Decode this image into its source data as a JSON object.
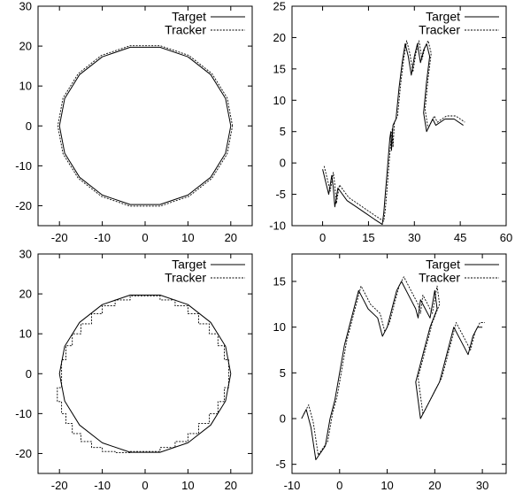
{
  "chart_data": [
    {
      "type": "line",
      "xlim": [
        -25,
        25
      ],
      "ylim": [
        -25,
        30
      ],
      "xticks": [
        -20,
        -10,
        0,
        10,
        20
      ],
      "yticks": [
        -20,
        -10,
        0,
        10,
        20,
        30
      ],
      "legend_position": "top-right",
      "series": [
        {
          "name": "Target",
          "style": "solid",
          "x": [
            20,
            18.79,
            15.32,
            10,
            3.47,
            -3.47,
            -10,
            -15.32,
            -18.79,
            -20,
            -18.79,
            -15.32,
            -10,
            -3.47,
            3.47,
            10,
            15.32,
            18.79,
            20
          ],
          "y": [
            0,
            6.84,
            12.86,
            17.32,
            19.7,
            19.7,
            17.32,
            12.86,
            6.84,
            0,
            -6.84,
            -12.86,
            -17.32,
            -19.7,
            -19.7,
            -17.32,
            -12.86,
            -6.84,
            0
          ]
        },
        {
          "name": "Tracker",
          "style": "dashed",
          "x": [
            20.4,
            19.17,
            15.63,
            10.2,
            3.54,
            -3.54,
            -10.2,
            -15.63,
            -19.17,
            -20.4,
            -19.17,
            -15.63,
            -10.2,
            -3.54,
            3.54,
            10.2,
            15.63,
            19.17,
            20.4
          ],
          "y": [
            0,
            6.98,
            13.11,
            17.67,
            20.09,
            20.09,
            17.67,
            13.11,
            6.98,
            0,
            -6.98,
            -13.11,
            -17.67,
            -20.09,
            -20.09,
            -17.67,
            -13.11,
            -6.98,
            0
          ]
        }
      ]
    },
    {
      "type": "line",
      "xlim": [
        -10,
        60
      ],
      "ylim": [
        -10,
        25
      ],
      "xticks": [
        0,
        15,
        30,
        45,
        60
      ],
      "yticks": [
        -10,
        -5,
        0,
        5,
        10,
        15,
        20,
        25
      ],
      "legend_position": "top-right",
      "series": [
        {
          "name": "Target",
          "style": "solid",
          "x": [
            0,
            1,
            2,
            3,
            3.5,
            4,
            5,
            8,
            11,
            14,
            17,
            19.5,
            20,
            20.5,
            21,
            21.5,
            22,
            22.3,
            22.5,
            23,
            24,
            25,
            26,
            27,
            28,
            29,
            30,
            31,
            32,
            33,
            34,
            35,
            34,
            33,
            34,
            36,
            37,
            40,
            43,
            46
          ],
          "y": [
            -1,
            -3,
            -5,
            -2,
            -4,
            -7,
            -4,
            -6,
            -7,
            -8,
            -9,
            -9.8,
            -8,
            -5,
            -2,
            1,
            4,
            5,
            2,
            6,
            7,
            12,
            16,
            19,
            17,
            14,
            17,
            19,
            16,
            18,
            19,
            17,
            13,
            8,
            5,
            7,
            6,
            7,
            7,
            6
          ]
        },
        {
          "name": "Tracker",
          "style": "dashed",
          "x": [
            0.5,
            1.5,
            2.5,
            3.5,
            4,
            4.5,
            5.5,
            8.5,
            11.5,
            14.5,
            17.5,
            20,
            20.5,
            21,
            21.5,
            22,
            22.5,
            22.8,
            23,
            23.5,
            24.5,
            25.5,
            26.5,
            27.5,
            28.5,
            29.5,
            30.5,
            31.5,
            32.5,
            33.5,
            34.5,
            35.5,
            34.5,
            33.5,
            34.5,
            36.5,
            37.5,
            40.5,
            43.5,
            46.5
          ],
          "y": [
            -0.5,
            -2.5,
            -4.5,
            -1.5,
            -3.5,
            -6.5,
            -3.5,
            -5.5,
            -6.5,
            -7.5,
            -8.5,
            -9.3,
            -7.5,
            -4.5,
            -1.5,
            1.5,
            4.5,
            5.5,
            2.5,
            6.5,
            7.5,
            12.5,
            16.5,
            19.5,
            17.5,
            14.5,
            17.5,
            19.5,
            16.5,
            18.5,
            19.5,
            17.5,
            13.5,
            8.5,
            5.5,
            7.5,
            6.5,
            7.5,
            7.5,
            6.5
          ]
        }
      ]
    },
    {
      "type": "line",
      "xlim": [
        -25,
        25
      ],
      "ylim": [
        -25,
        30
      ],
      "xticks": [
        -20,
        -10,
        0,
        10,
        20
      ],
      "yticks": [
        -20,
        -10,
        0,
        10,
        20,
        30
      ],
      "legend_position": "top-right",
      "series": [
        {
          "name": "Target",
          "style": "solid",
          "x": [
            20,
            18.79,
            15.32,
            10,
            3.47,
            -3.47,
            -10,
            -15.32,
            -18.79,
            -20,
            -18.79,
            -15.32,
            -10,
            -3.47,
            3.47,
            10,
            15.32,
            18.79,
            20
          ],
          "y": [
            0,
            6.84,
            12.86,
            17.32,
            19.7,
            19.7,
            17.32,
            12.86,
            6.84,
            0,
            -6.84,
            -12.86,
            -17.32,
            -19.7,
            -19.7,
            -17.32,
            -12.86,
            -6.84,
            0
          ]
        },
        {
          "name": "Tracker",
          "style": "dashed",
          "x": [
            19.5,
            19.5,
            18.5,
            18.5,
            17,
            17,
            15,
            15,
            12.5,
            12.5,
            10,
            10,
            7,
            7,
            3.5,
            3.5,
            0,
            -3.5,
            -3.5,
            -7,
            -7,
            -10,
            -10,
            -12.5,
            -12.5,
            -15,
            -15,
            -17,
            -17,
            -18.5,
            -18.5,
            -19.5,
            -19.5,
            -20.5,
            -20.5,
            -19.5,
            -19.5,
            -18.5,
            -18.5,
            -17,
            -17,
            -15,
            -15,
            -12.5,
            -12.5,
            -10,
            -10,
            -7,
            -7,
            -3.5,
            -3.5,
            0,
            3.5,
            3.5,
            7,
            7,
            10,
            10,
            12.5,
            12.5,
            15,
            15,
            17,
            17,
            18.5,
            18.5,
            19.5,
            19.5
          ],
          "y": [
            0,
            3.5,
            3.5,
            7,
            7,
            10,
            10,
            12.5,
            12.5,
            15,
            15,
            17,
            17,
            18.5,
            18.5,
            19.5,
            19.5,
            19.5,
            18.5,
            18.5,
            17,
            17,
            15,
            15,
            12.5,
            12.5,
            10,
            10,
            7,
            7,
            3.5,
            3.5,
            -3.5,
            -3.5,
            -7,
            -7,
            -10,
            -10,
            -12.5,
            -12.5,
            -15,
            -15,
            -17,
            -17,
            -18.5,
            -18.5,
            -19.5,
            -19.5,
            -19.8,
            -19.8,
            -19.5,
            -19.5,
            -19.5,
            -18.5,
            -18.5,
            -17,
            -17,
            -15,
            -15,
            -12.5,
            -12.5,
            -10,
            -10,
            -7,
            -7,
            -3.5,
            -3.5,
            0
          ]
        }
      ]
    },
    {
      "type": "line",
      "xlim": [
        -10,
        35
      ],
      "ylim": [
        -6,
        18
      ],
      "xticks": [
        -10,
        0,
        10,
        20,
        30
      ],
      "yticks": [
        -5,
        0,
        5,
        10,
        15
      ],
      "legend_position": "top-right",
      "series": [
        {
          "name": "Target",
          "style": "solid",
          "x": [
            -8,
            -7,
            -6,
            -5,
            -3,
            -2,
            -1,
            0,
            1,
            2,
            4,
            5,
            6,
            8,
            9,
            10,
            11,
            12,
            13,
            15,
            16,
            16.5,
            17,
            18,
            19,
            20,
            20.5,
            19,
            18,
            17,
            16,
            16.5,
            17,
            18,
            19,
            20,
            21,
            22,
            23,
            24,
            25,
            26,
            27,
            28,
            29,
            30
          ],
          "y": [
            0,
            1,
            -1,
            -4.5,
            -3,
            0,
            2,
            5,
            8,
            10,
            14,
            13,
            12,
            11,
            9,
            10,
            12,
            14,
            15,
            13,
            12,
            11,
            13,
            12,
            11,
            14,
            12,
            10,
            8,
            6,
            4,
            2,
            0,
            1,
            2,
            3,
            4,
            6,
            8,
            10,
            9,
            8,
            7,
            9,
            10,
            10
          ]
        },
        {
          "name": "Tracker",
          "style": "dashed",
          "x": [
            -7.5,
            -6.5,
            -5.5,
            -4.5,
            -2.5,
            -1.5,
            -0.5,
            0.5,
            1.5,
            2.5,
            4.5,
            5.5,
            6.5,
            8.5,
            9.5,
            10.5,
            11.5,
            12.5,
            13.5,
            15.5,
            16.5,
            17,
            17.5,
            18.5,
            19.5,
            20.5,
            21,
            19.5,
            18.5,
            17.5,
            16.5,
            17,
            17.5,
            18.5,
            19.5,
            20.5,
            21.5,
            22.5,
            23.5,
            24.5,
            25.5,
            26.5,
            27.5,
            28.5,
            29.5,
            30.5
          ],
          "y": [
            0.5,
            1.5,
            -0.5,
            -4,
            -2.5,
            0.5,
            2.5,
            5.5,
            8.5,
            10.5,
            14.5,
            13.5,
            12.5,
            11.5,
            9.5,
            10.5,
            12.5,
            14.5,
            15.5,
            13.5,
            12.5,
            11.5,
            13.5,
            12.5,
            11.5,
            14.5,
            12.5,
            10.5,
            8.5,
            6.5,
            4.5,
            2.5,
            0.5,
            1.5,
            2.5,
            3.5,
            4.5,
            6.5,
            8.5,
            10.5,
            9.5,
            8.5,
            7.5,
            9.5,
            10.5,
            10.5
          ]
        }
      ]
    }
  ]
}
